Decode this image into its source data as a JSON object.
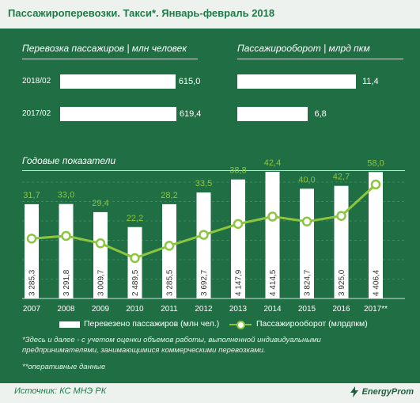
{
  "header": {
    "title": "Пассажироперевозки. Такси*. Январь-февраль 2018"
  },
  "summary_left": {
    "title": "Перевозка пассажиров | млн человек",
    "rows": [
      {
        "label": "2018/02",
        "value": "615,0"
      },
      {
        "label": "2017/02",
        "value": "619,4"
      }
    ]
  },
  "summary_right": {
    "title": "Пассажирооборот | млрд пкм",
    "rows": [
      {
        "label": "2018/02",
        "value": "11,4"
      },
      {
        "label": "2017/02",
        "value": "6,8"
      }
    ]
  },
  "annual_title": "Годовые показатели",
  "legend": {
    "bars": "Перевезено пассажиров (млн чел.)",
    "line": "Пассажирооборот (млрдпкм)"
  },
  "notes": {
    "note1_line1": "*Здесь и далее - с учетом оценки объемов работы, выполненной индивидуальными",
    "note1_line2": "предпринимателями, занимающимися коммерческими перевозками.",
    "note2": "**оперативные данные"
  },
  "footer": {
    "source": "Источник: КС МНЭ РК",
    "brand": "EnergyProm"
  },
  "colors": {
    "panel": "#1f6e44",
    "bars": "#ffffff",
    "line": "#8cc63f",
    "header_text": "#1f7a47"
  },
  "chart_data": [
    {
      "type": "bar",
      "title": "Перевозка пассажиров | млн человек",
      "categories": [
        "2018/02",
        "2017/02"
      ],
      "values": [
        615.0,
        619.4
      ],
      "value_labels": [
        "615,0",
        "619,4"
      ]
    },
    {
      "type": "bar",
      "title": "Пассажирооборот | млрд пкм",
      "categories": [
        "2018/02",
        "2017/02"
      ],
      "values": [
        11.4,
        6.8
      ],
      "value_labels": [
        "11,4",
        "6,8"
      ]
    },
    {
      "type": "bar",
      "title": "Годовые показатели",
      "categories": [
        "2007",
        "2008",
        "2009",
        "2010",
        "2011",
        "2012",
        "2013",
        "2014",
        "2015",
        "2016",
        "2017**"
      ],
      "series": [
        {
          "name": "Перевезено пассажиров (млн чел.)",
          "type": "bar",
          "values": [
            3285.3,
            3291.8,
            3009.7,
            2489.5,
            3285.5,
            3692.7,
            4147.9,
            4414.5,
            3824.7,
            3925.0,
            4406.4
          ],
          "labels": [
            "3 285,3",
            "3 291,8",
            "3 009,7",
            "2 489,5",
            "3 285,5",
            "3 692,7",
            "4 147,9",
            "4 414,5",
            "3 824,7",
            "3 925,0",
            "4 406,4"
          ]
        },
        {
          "name": "Пассажирооборот (млрдпкм)",
          "type": "line",
          "values": [
            31.7,
            33.0,
            29.4,
            22.2,
            28.2,
            33.5,
            38.8,
            42.4,
            40.0,
            42.7,
            58.0
          ],
          "labels": [
            "31,7",
            "33,0",
            "29,4",
            "22,2",
            "28,2",
            "33,5",
            "38,8",
            "42,4",
            "40,0",
            "42,7",
            "58,0"
          ]
        }
      ],
      "grid": true,
      "legend_position": "bottom"
    }
  ]
}
